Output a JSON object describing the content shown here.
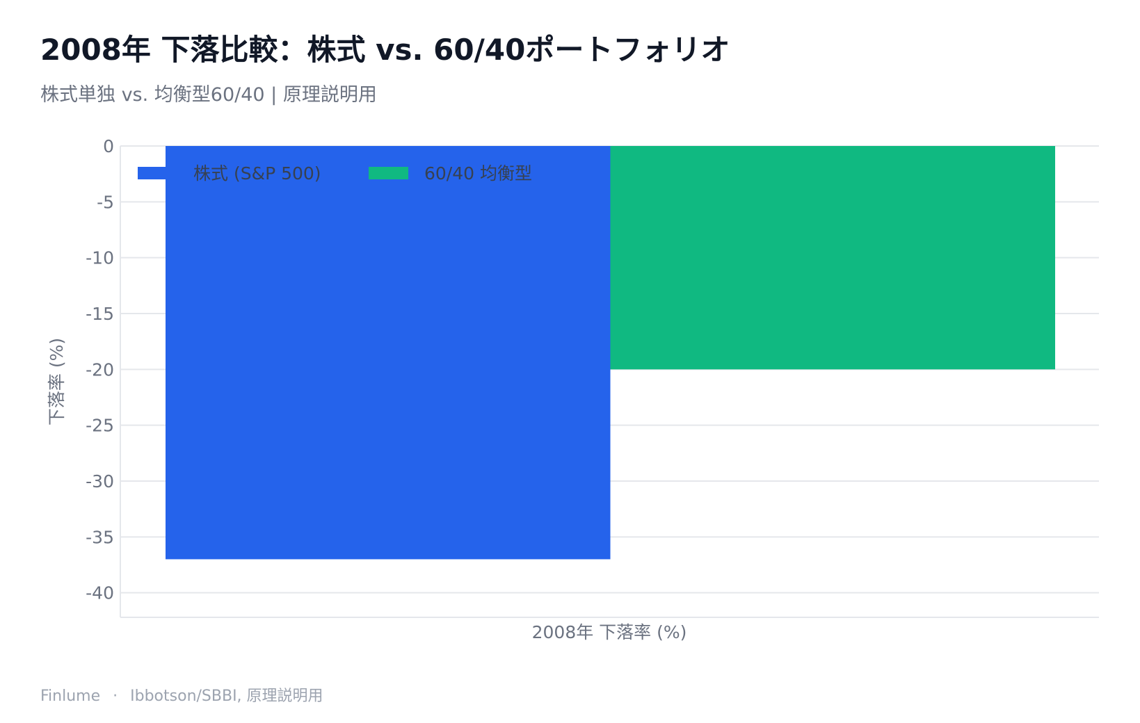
{
  "header": {
    "title": "2008年 下落比較：株式 vs. 60/40ポートフォリオ",
    "subtitle": "株式単独 vs. 均衡型60/40 | 原理説明用"
  },
  "footer": {
    "brand": "Finlume",
    "separator": "·",
    "source": "Ibbotson/SBBI, 原理説明用"
  },
  "chart_data": {
    "type": "bar",
    "categories": [
      "2008年 下落率 (%)"
    ],
    "series": [
      {
        "name": "株式 (S&P 500)",
        "values": [
          -37
        ],
        "color": "#2563eb"
      },
      {
        "name": "60/40 均衡型",
        "values": [
          -20
        ],
        "color": "#10b981"
      }
    ],
    "xlabel": "2008年 下落率 (%)",
    "ylabel": "下落率 (%)",
    "ylim": [
      -42.2,
      0
    ],
    "yticks": [
      0,
      -5,
      -10,
      -15,
      -20,
      -25,
      -30,
      -35,
      -40
    ],
    "grid": true,
    "legend": "top-left"
  }
}
